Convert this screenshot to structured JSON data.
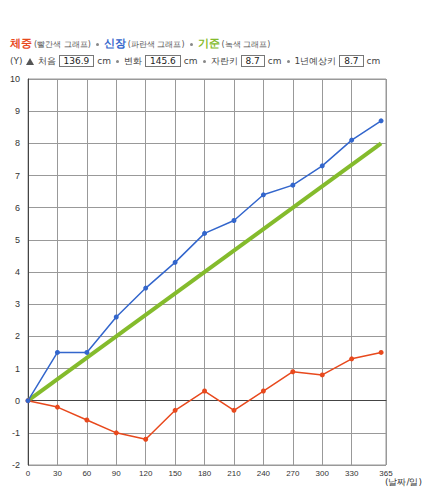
{
  "chart_data": {
    "type": "line",
    "header": {
      "y_label": "(Y)",
      "info": [
        {
          "label": "처음",
          "value": 136.9,
          "unit": "cm"
        },
        {
          "label": "변화",
          "value": 145.6,
          "unit": "cm"
        },
        {
          "label": "자란키",
          "value": 8.7,
          "unit": "cm"
        },
        {
          "label": "1년예상키",
          "value": 8.7,
          "unit": "cm"
        }
      ]
    },
    "x_axis_label": "(날짜/일)",
    "series": [
      {
        "name": "체중",
        "description": "(빨간색 그래프)",
        "color": "#e8491d",
        "marker": "circle",
        "line_style": "solid",
        "x": [
          0,
          30,
          60,
          90,
          120,
          150,
          180,
          210,
          240,
          270,
          300,
          330,
          360
        ],
        "values": [
          0,
          -0.2,
          -0.6,
          -1.0,
          -1.2,
          -0.3,
          0.3,
          -0.3,
          0.3,
          0.9,
          0.8,
          1.3,
          1.5
        ]
      },
      {
        "name": "신장",
        "description": "(파란색 그래프)",
        "color": "#3366cc",
        "marker": "circle",
        "line_style": "solid",
        "x": [
          0,
          30,
          60,
          90,
          120,
          150,
          180,
          210,
          240,
          270,
          300,
          330,
          360
        ],
        "values": [
          0,
          1.5,
          1.5,
          2.6,
          3.5,
          4.3,
          5.2,
          5.6,
          6.4,
          6.7,
          7.3,
          8.1,
          8.7
        ]
      },
      {
        "name": "기준",
        "description": "(녹색 그래프)",
        "color": "#84bb2c",
        "marker": "none",
        "line_style": "solid",
        "x": [
          0,
          360
        ],
        "values": [
          0,
          8
        ]
      }
    ],
    "xlim": [
      0,
      365
    ],
    "xticks": [
      0,
      30,
      60,
      90,
      120,
      150,
      180,
      210,
      240,
      270,
      300,
      330,
      365
    ],
    "ylim": [
      -2,
      10
    ],
    "yticks": [
      -2,
      -1,
      0,
      1,
      2,
      3,
      4,
      5,
      6,
      7,
      8,
      9,
      10
    ],
    "grid": true
  }
}
